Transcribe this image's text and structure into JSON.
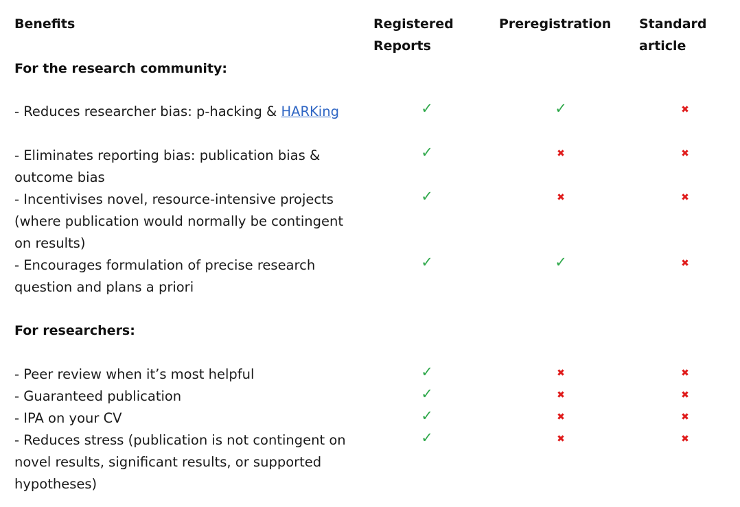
{
  "headers": {
    "benefits": "Benefits",
    "rr_line1": "Registered",
    "rr_line2": "Reports",
    "prereg": "Preregistration",
    "std_line1": "Standard",
    "std_line2": "article"
  },
  "symbols": {
    "yes": "✓",
    "no": "✖"
  },
  "colors": {
    "yes": "#2ea84a",
    "no": "#e01b1b",
    "link": "#2f66c4"
  },
  "sections": [
    {
      "title": "For the research community:",
      "rows": [
        {
          "pre": "- Reduces researcher bias: p-hacking &",
          "link": "HARKing",
          "text": "",
          "rr": "yes",
          "prereg": "yes",
          "standard": "no"
        },
        {
          "pre": "",
          "link": "",
          "text": "- Eliminates reporting bias: publication bias & outcome bias",
          "rr": "yes",
          "prereg": "no",
          "standard": "no"
        },
        {
          "pre": "",
          "link": "",
          "text": "- Incentivises novel, resource-intensive projects (where publication would normally be contingent on results)",
          "rr": "yes",
          "prereg": "no",
          "standard": "no"
        },
        {
          "pre": "",
          "link": "",
          "text": "- Encourages formulation of precise research question and plans a priori",
          "rr": "yes",
          "prereg": "yes",
          "standard": "no"
        }
      ]
    },
    {
      "title": "For researchers:",
      "rows": [
        {
          "pre": "",
          "link": "",
          "text": "- Peer review when it’s most helpful",
          "rr": "yes",
          "prereg": "no",
          "standard": "no"
        },
        {
          "pre": "",
          "link": "",
          "text": "- Guaranteed publication",
          "rr": "yes",
          "prereg": "no",
          "standard": "no"
        },
        {
          "pre": "",
          "link": "",
          "text": "- IPA on your CV",
          "rr": "yes",
          "prereg": "no",
          "standard": "no"
        },
        {
          "pre": "",
          "link": "",
          "text": "- Reduces stress (publication is not contingent on novel results, significant results, or supported hypotheses)",
          "rr": "yes",
          "prereg": "no",
          "standard": "no"
        }
      ]
    }
  ]
}
